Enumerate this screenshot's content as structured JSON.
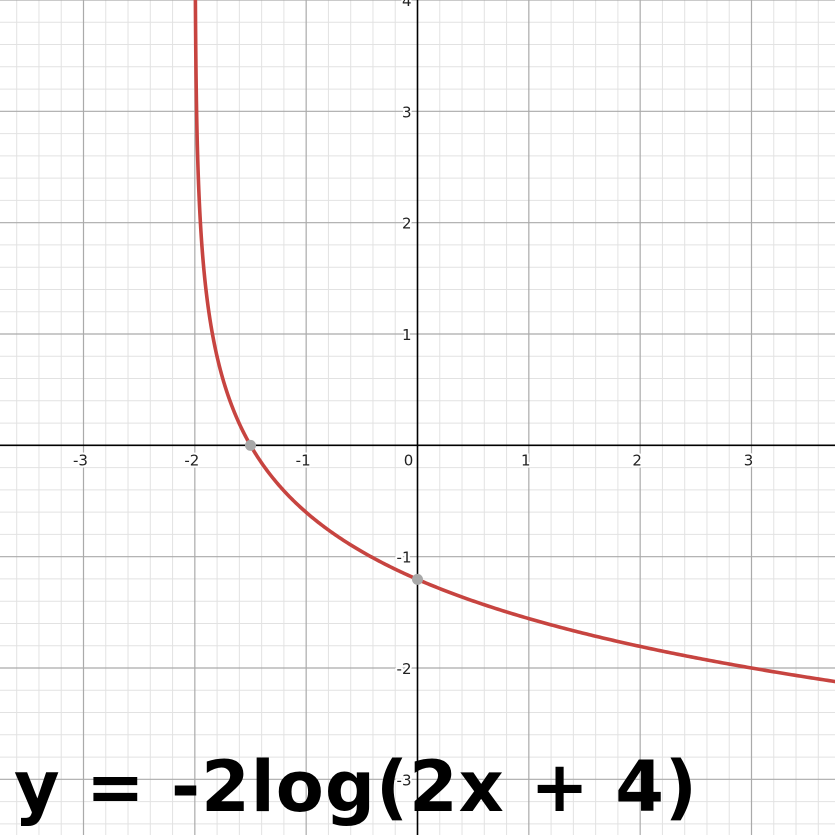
{
  "chart_data": {
    "type": "line",
    "title": "y = -2log(2x + 4)",
    "xlabel": "",
    "ylabel": "",
    "xlim": [
      -3.75,
      3.75
    ],
    "ylim": [
      -3.5,
      4.0
    ],
    "grid": true,
    "minor_grid_per_major": 5,
    "x_ticks": [
      -3,
      -2,
      -1,
      0,
      1,
      2,
      3
    ],
    "x_tick_labels": [
      "-3",
      "-2",
      "-1",
      "0",
      "1",
      "2",
      "3"
    ],
    "y_ticks": [
      4,
      3,
      2,
      1,
      -1,
      -2,
      -3
    ],
    "y_tick_labels": [
      "4",
      "3",
      "2",
      "1",
      "-1",
      "-2",
      "-3"
    ],
    "series": [
      {
        "expression": "y = -2 * log10(2x + 4)",
        "vertical_asymptote_x": -2,
        "color": "#c74440",
        "x": [
          -1.995,
          -1.99,
          -1.98,
          -1.95,
          -1.9,
          -1.8,
          -1.7,
          -1.6,
          -1.5,
          -1.25,
          -1.0,
          -0.5,
          0,
          0.5,
          1,
          1.5,
          2,
          2.5,
          3,
          3.5,
          3.75
        ],
        "y": [
          4.0,
          3.4,
          2.8,
          2.0,
          1.4,
          0.8,
          0.44,
          0.19,
          0.0,
          -0.35,
          -0.6,
          -0.95,
          -1.2,
          -1.4,
          -1.56,
          -1.68,
          -1.81,
          -1.9,
          -2.0,
          -2.08,
          -2.12
        ]
      }
    ],
    "points": [
      {
        "x": -1.5,
        "y": 0
      },
      {
        "x": 0,
        "y": -1.204
      }
    ],
    "colors": {
      "curve": "#c74440",
      "point": "#a8a8a8",
      "axis": "#000000",
      "major_grid": "#aaaaaa",
      "minor_grid": "#e2e2e2"
    }
  }
}
